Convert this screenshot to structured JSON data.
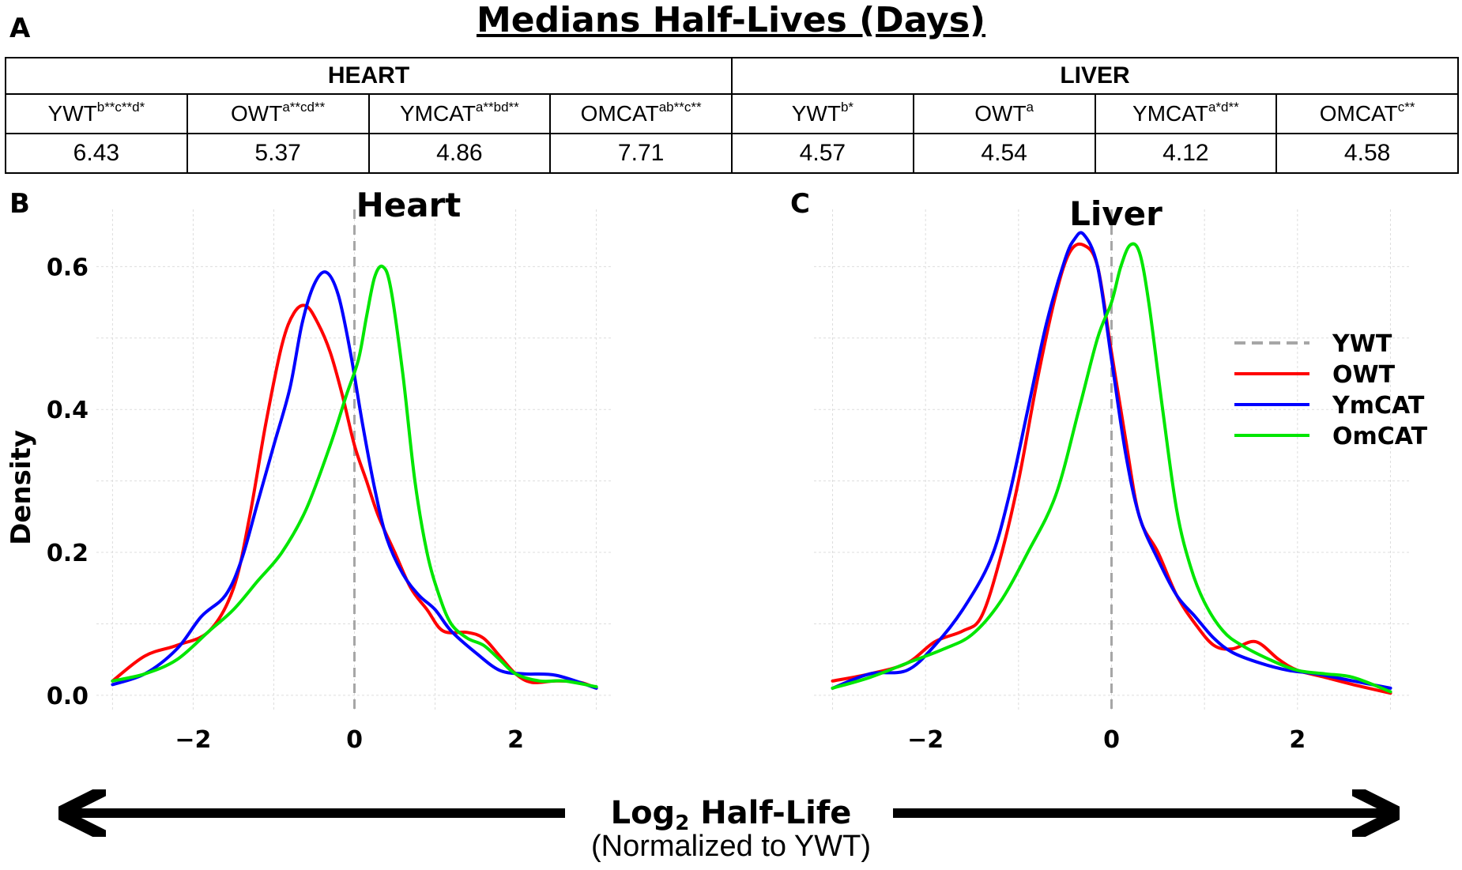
{
  "panel_labels": {
    "a": "A",
    "b": "B",
    "c": "C"
  },
  "table": {
    "title": "Medians Half-Lives (Days)",
    "groups": [
      "HEART",
      "LIVER"
    ],
    "headers": [
      {
        "base": "YWT",
        "sup": "b**c**d*"
      },
      {
        "base": "OWT",
        "sup": "a**cd**"
      },
      {
        "base": "YMCAT",
        "sup": "a**bd**"
      },
      {
        "base": "OMCAT",
        "sup": "ab**c**"
      },
      {
        "base": "YWT",
        "sup": "b*"
      },
      {
        "base": "OWT",
        "sup": "a"
      },
      {
        "base": "YMCAT",
        "sup": "a*d**"
      },
      {
        "base": "OMCAT",
        "sup": "c**"
      }
    ],
    "values": [
      "6.43",
      "5.37",
      "4.86",
      "7.71",
      "4.57",
      "4.54",
      "4.12",
      "4.58"
    ]
  },
  "axis": {
    "ylabel": "Density",
    "xlabel_main": "Log",
    "xlabel_sub": "2",
    "xlabel_rest": " Half-Life",
    "xlabel_note": "(Normalized  to YWT)"
  },
  "colors": {
    "YWT": "#a6a6a6",
    "OWT": "#ff0000",
    "YmCAT": "#0000ff",
    "OmCAT": "#00e600"
  },
  "legend": [
    "YWT",
    "OWT",
    "YmCAT",
    "OmCAT"
  ],
  "chart_data": [
    {
      "type": "line",
      "title": "Heart",
      "xlabel": "Log2 Half-Life (Normalized to YWT)",
      "ylabel": "Density",
      "xlim": [
        -3.2,
        3.2
      ],
      "ylim": [
        -0.02,
        0.68
      ],
      "xticks": [
        -2,
        0,
        2
      ],
      "yticks": [
        0.0,
        0.2,
        0.4,
        0.6
      ],
      "grid": true,
      "reference_line": {
        "name": "YWT",
        "x": 0,
        "style": "dashed"
      },
      "series": [
        {
          "name": "OWT",
          "x": [
            -3.0,
            -2.6,
            -2.2,
            -1.8,
            -1.5,
            -1.3,
            -1.1,
            -0.9,
            -0.75,
            -0.6,
            -0.45,
            -0.3,
            -0.15,
            0.0,
            0.15,
            0.3,
            0.5,
            0.7,
            0.9,
            1.1,
            1.4,
            1.6,
            1.8,
            2.0,
            2.2,
            2.5,
            2.8,
            3.0
          ],
          "y": [
            0.02,
            0.055,
            0.07,
            0.09,
            0.15,
            0.25,
            0.38,
            0.49,
            0.535,
            0.545,
            0.52,
            0.48,
            0.42,
            0.35,
            0.3,
            0.25,
            0.2,
            0.15,
            0.12,
            0.09,
            0.088,
            0.08,
            0.055,
            0.03,
            0.018,
            0.02,
            0.018,
            0.01
          ]
        },
        {
          "name": "YmCAT",
          "x": [
            -3.0,
            -2.6,
            -2.2,
            -1.9,
            -1.6,
            -1.4,
            -1.2,
            -1.0,
            -0.8,
            -0.65,
            -0.5,
            -0.35,
            -0.2,
            -0.05,
            0.1,
            0.25,
            0.4,
            0.6,
            0.8,
            1.0,
            1.2,
            1.5,
            1.8,
            2.1,
            2.5,
            3.0
          ],
          "y": [
            0.015,
            0.03,
            0.065,
            0.11,
            0.14,
            0.19,
            0.27,
            0.35,
            0.43,
            0.52,
            0.575,
            0.592,
            0.56,
            0.48,
            0.38,
            0.29,
            0.22,
            0.17,
            0.14,
            0.12,
            0.09,
            0.06,
            0.035,
            0.03,
            0.028,
            0.01
          ]
        },
        {
          "name": "OmCAT",
          "x": [
            -3.0,
            -2.6,
            -2.2,
            -1.8,
            -1.5,
            -1.2,
            -0.9,
            -0.6,
            -0.3,
            -0.1,
            0.05,
            0.15,
            0.25,
            0.35,
            0.45,
            0.6,
            0.75,
            0.9,
            1.05,
            1.2,
            1.4,
            1.6,
            1.8,
            2.0,
            2.3,
            2.6,
            3.0
          ],
          "y": [
            0.02,
            0.03,
            0.05,
            0.09,
            0.12,
            0.16,
            0.2,
            0.26,
            0.35,
            0.42,
            0.47,
            0.53,
            0.585,
            0.6,
            0.57,
            0.45,
            0.3,
            0.2,
            0.14,
            0.1,
            0.08,
            0.07,
            0.05,
            0.03,
            0.02,
            0.02,
            0.012
          ]
        }
      ]
    },
    {
      "type": "line",
      "title": "Liver",
      "xlabel": "Log2 Half-Life (Normalized to YWT)",
      "ylabel": "Density",
      "xlim": [
        -3.2,
        3.2
      ],
      "ylim": [
        -0.02,
        0.68
      ],
      "xticks": [
        -2,
        0,
        2
      ],
      "yticks": [
        0.0,
        0.2,
        0.4,
        0.6
      ],
      "grid": true,
      "reference_line": {
        "name": "YWT",
        "x": 0,
        "style": "dashed"
      },
      "series": [
        {
          "name": "OWT",
          "x": [
            -3.0,
            -2.6,
            -2.2,
            -1.9,
            -1.6,
            -1.4,
            -1.2,
            -1.0,
            -0.8,
            -0.6,
            -0.45,
            -0.3,
            -0.15,
            0.0,
            0.15,
            0.3,
            0.5,
            0.7,
            0.9,
            1.1,
            1.3,
            1.55,
            1.8,
            2.0,
            2.3,
            2.6,
            3.0
          ],
          "y": [
            0.02,
            0.03,
            0.045,
            0.075,
            0.09,
            0.11,
            0.19,
            0.3,
            0.44,
            0.56,
            0.62,
            0.63,
            0.6,
            0.48,
            0.36,
            0.25,
            0.2,
            0.14,
            0.1,
            0.07,
            0.065,
            0.075,
            0.05,
            0.035,
            0.025,
            0.015,
            0.003
          ]
        },
        {
          "name": "YmCAT",
          "x": [
            -3.0,
            -2.6,
            -2.2,
            -1.9,
            -1.6,
            -1.3,
            -1.1,
            -0.9,
            -0.7,
            -0.5,
            -0.4,
            -0.3,
            -0.15,
            0.0,
            0.15,
            0.3,
            0.5,
            0.7,
            0.9,
            1.1,
            1.3,
            1.6,
            1.9,
            2.2,
            2.6,
            3.0
          ],
          "y": [
            0.01,
            0.03,
            0.035,
            0.07,
            0.12,
            0.19,
            0.28,
            0.4,
            0.52,
            0.61,
            0.638,
            0.645,
            0.6,
            0.47,
            0.34,
            0.25,
            0.19,
            0.14,
            0.11,
            0.08,
            0.06,
            0.045,
            0.035,
            0.03,
            0.02,
            0.01
          ]
        },
        {
          "name": "OmCAT",
          "x": [
            -3.0,
            -2.6,
            -2.2,
            -1.8,
            -1.5,
            -1.2,
            -0.9,
            -0.6,
            -0.35,
            -0.15,
            0.0,
            0.1,
            0.2,
            0.3,
            0.4,
            0.55,
            0.7,
            0.85,
            1.0,
            1.2,
            1.4,
            1.7,
            2.0,
            2.3,
            2.6,
            3.0
          ],
          "y": [
            0.01,
            0.025,
            0.045,
            0.065,
            0.085,
            0.13,
            0.2,
            0.28,
            0.4,
            0.5,
            0.55,
            0.6,
            0.63,
            0.62,
            0.55,
            0.4,
            0.26,
            0.18,
            0.13,
            0.09,
            0.07,
            0.05,
            0.035,
            0.03,
            0.025,
            0.005
          ]
        }
      ]
    }
  ]
}
